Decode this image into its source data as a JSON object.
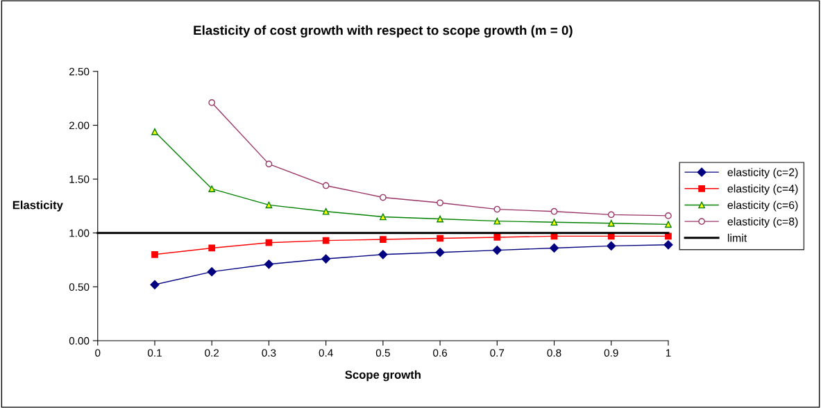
{
  "chart_data": {
    "type": "line",
    "title": "Elasticity of cost growth with respect to scope growth (m = 0)",
    "xlabel": "Scope growth",
    "ylabel": "Elasticity",
    "x": [
      0.1,
      0.2,
      0.3,
      0.4,
      0.5,
      0.6,
      0.7,
      0.8,
      0.9,
      1
    ],
    "series": [
      {
        "name": "elasticity (c=2)",
        "color": "#000080",
        "marker": "diamond",
        "values": [
          0.52,
          0.64,
          0.71,
          0.76,
          0.8,
          0.82,
          0.84,
          0.86,
          0.88,
          0.89
        ]
      },
      {
        "name": "elasticity (c=4)",
        "color": "#ff0000",
        "marker": "square",
        "values": [
          0.8,
          0.86,
          0.91,
          0.93,
          0.94,
          0.95,
          0.96,
          0.97,
          0.97,
          0.97
        ]
      },
      {
        "name": "elasticity (c=6)",
        "color": "#008000",
        "marker": "triangle",
        "values": [
          1.94,
          1.41,
          1.26,
          1.2,
          1.15,
          1.13,
          1.11,
          1.1,
          1.09,
          1.08
        ]
      },
      {
        "name": "elasticity (c=8)",
        "color": "#993366",
        "marker": "circle",
        "values": [
          null,
          2.21,
          1.64,
          1.44,
          1.33,
          1.28,
          1.22,
          1.2,
          1.17,
          1.16
        ]
      },
      {
        "name": "limit",
        "color": "#000000",
        "marker": "none",
        "x": [
          0,
          1
        ],
        "values": [
          1.0,
          1.0
        ]
      }
    ],
    "xlim": [
      0,
      1
    ],
    "xticks": [
      0,
      0.1,
      0.2,
      0.3,
      0.4,
      0.5,
      0.6,
      0.7,
      0.8,
      0.9,
      1
    ],
    "ylim": [
      0,
      2.5
    ],
    "yticks": [
      {
        "value": 0,
        "label": "0.00"
      },
      {
        "value": 0.5,
        "label": "0.50"
      },
      {
        "value": 1,
        "label": "1.00"
      },
      {
        "value": 1.5,
        "label": "1.50"
      },
      {
        "value": 2,
        "label": "2.00"
      },
      {
        "value": 2.5,
        "label": "2.50"
      }
    ],
    "grid": false,
    "legend": "right",
    "line_style": "solid"
  }
}
